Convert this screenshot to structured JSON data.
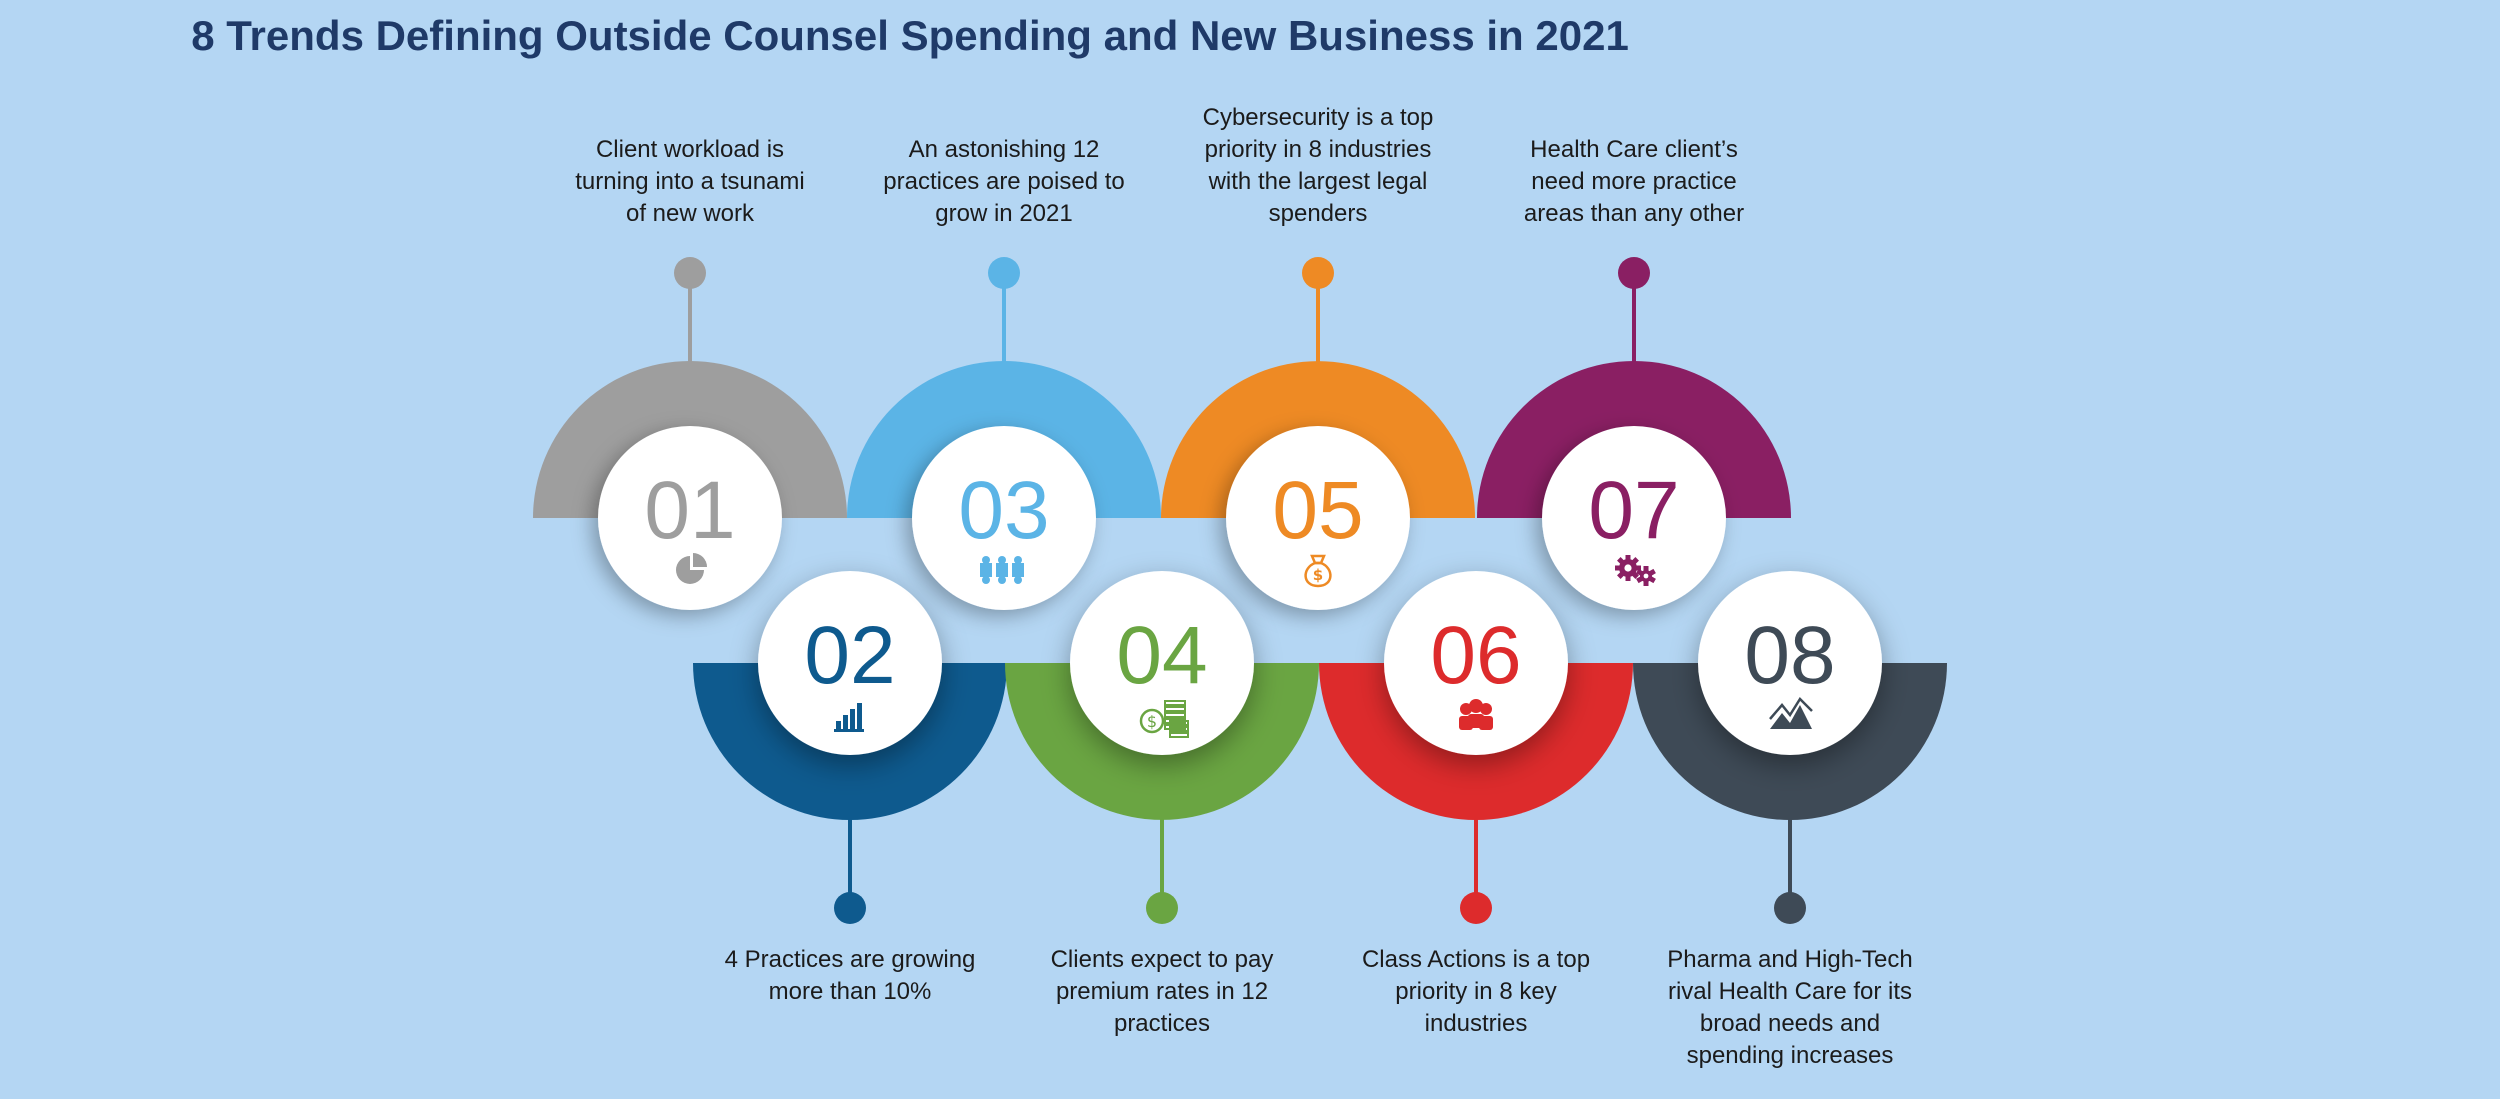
{
  "title": "8 Trends Defining Outside Counsel Spending and New Business in 2021",
  "trends": [
    {
      "number": "01",
      "color": "#9e9e9e",
      "icon": "pie-chart-icon",
      "lines": [
        "Client workload is",
        "turning into a tsunami",
        "of new work"
      ]
    },
    {
      "number": "02",
      "color": "#0e5a8e",
      "icon": "bar-chart-icon",
      "lines": [
        "4 Practices are growing",
        "more than 10%"
      ]
    },
    {
      "number": "03",
      "color": "#5bb4e6",
      "icon": "puzzle-icon",
      "lines": [
        "An astonishing 12",
        "practices are poised to",
        "grow in 2021"
      ]
    },
    {
      "number": "04",
      "color": "#6aa542",
      "icon": "coins-icon",
      "lines": [
        "Clients expect to pay",
        "premium rates in 12",
        "practices"
      ]
    },
    {
      "number": "05",
      "color": "#ee8a24",
      "icon": "money-bag-icon",
      "lines": [
        "Cybersecurity is a top",
        "priority in 8 industries",
        "with the largest legal",
        "spenders"
      ]
    },
    {
      "number": "06",
      "color": "#dd2b2c",
      "icon": "people-group-icon",
      "lines": [
        "Class Actions is a top",
        "priority in 8 key",
        "industries"
      ]
    },
    {
      "number": "07",
      "color": "#8a1f63",
      "icon": "gears-icon",
      "lines": [
        "Health Care client’s",
        "need more practice",
        "areas than any other"
      ]
    },
    {
      "number": "08",
      "color": "#3e4a56",
      "icon": "mountain-chart-icon",
      "lines": [
        "Pharma and High-Tech",
        "rival Health Care for its",
        "broad needs and",
        "spending increases"
      ]
    }
  ]
}
